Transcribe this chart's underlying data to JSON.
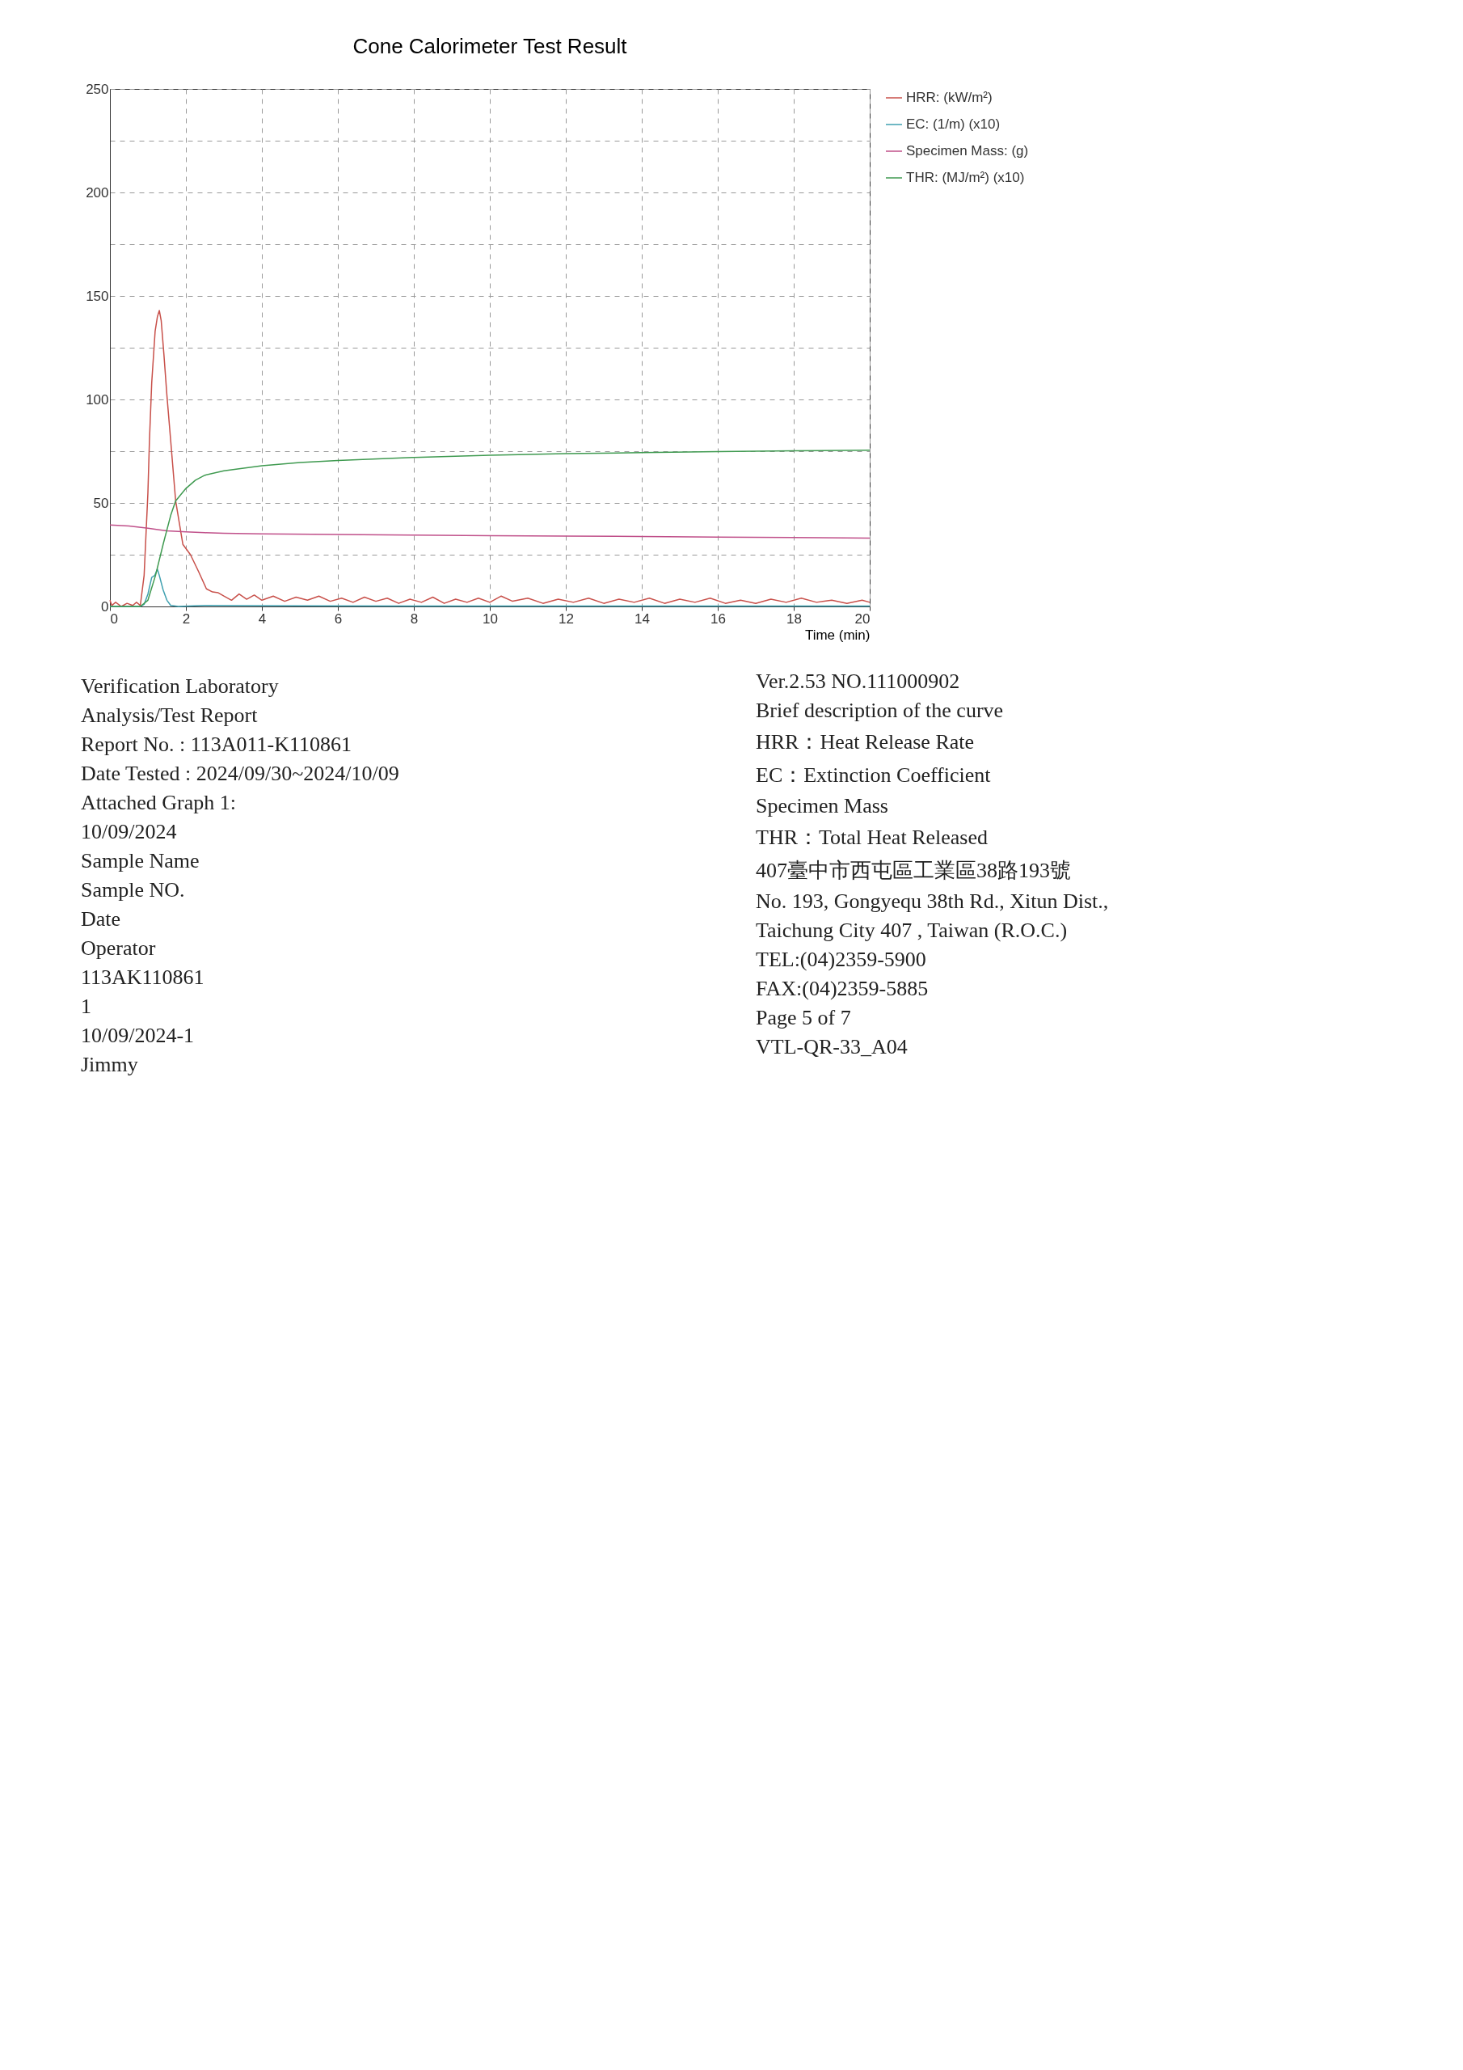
{
  "chart_data": {
    "type": "line",
    "title": "Cone Calorimeter Test Result",
    "xlabel": "Time (min)",
    "xlim": [
      0,
      20
    ],
    "xticks": [
      0,
      2,
      4,
      6,
      8,
      10,
      12,
      14,
      16,
      18,
      20
    ],
    "ylim": [
      0,
      250
    ],
    "yticks": [
      0,
      {
        "value": 25,
        "label": null
      },
      50,
      {
        "value": 75,
        "label": null
      },
      100,
      {
        "value": 125,
        "label": null
      },
      150,
      {
        "value": 175,
        "label": null
      },
      200,
      {
        "value": 225,
        "label": null
      },
      250
    ],
    "grid": true,
    "legend": "right",
    "marker": "none",
    "line_style": "solid",
    "series": [
      {
        "name": "HRR: (kW/m²)",
        "color": "#c8504a",
        "x": [
          0,
          0.05,
          0.15,
          0.3,
          0.45,
          0.6,
          0.7,
          0.8,
          0.9,
          1.0,
          1.04,
          1.1,
          1.19,
          1.25,
          1.3,
          1.35,
          1.42,
          1.5,
          1.6,
          1.73,
          1.92,
          2.12,
          2.33,
          2.54,
          2.7,
          2.85,
          3.0,
          3.2,
          3.4,
          3.6,
          3.8,
          4.0,
          4.3,
          4.6,
          4.9,
          5.2,
          5.5,
          5.8,
          6.1,
          6.4,
          6.7,
          7.0,
          7.3,
          7.6,
          7.9,
          8.2,
          8.5,
          8.8,
          9.1,
          9.4,
          9.7,
          10.0,
          10.3,
          10.6,
          11.0,
          11.4,
          11.8,
          12.2,
          12.6,
          13.0,
          13.4,
          13.8,
          14.2,
          14.6,
          15.0,
          15.4,
          15.8,
          16.2,
          16.6,
          17.0,
          17.4,
          17.8,
          18.2,
          18.6,
          19.0,
          19.4,
          19.8,
          20.0
        ],
        "values": [
          3,
          0.5,
          2,
          0,
          1.5,
          0.5,
          2,
          0.5,
          15,
          55,
          80,
          108,
          133,
          140,
          143,
          138,
          122,
          102,
          80,
          51,
          30,
          25,
          17,
          8.5,
          7,
          6.6,
          5,
          3,
          6,
          3.5,
          5.5,
          3,
          5,
          2.5,
          4.5,
          3,
          5,
          2.5,
          4,
          2,
          4.5,
          2.5,
          4,
          1.5,
          3.5,
          2,
          4.5,
          1.5,
          3.5,
          2,
          4,
          2,
          5,
          2.5,
          4,
          1.5,
          3.5,
          2,
          4,
          1.5,
          3.5,
          2,
          4,
          1.5,
          3.5,
          2,
          4,
          1.5,
          3,
          1.5,
          3.5,
          2,
          4,
          2,
          3,
          1.5,
          3,
          2
        ]
      },
      {
        "name": "EC: (1/m) (x10)",
        "color": "#3fa0b0",
        "x": [
          0,
          0.8,
          0.9,
          1.0,
          1.1,
          1.18,
          1.25,
          1.3,
          1.4,
          1.5,
          1.6,
          1.8,
          2.5,
          5,
          10,
          15,
          20
        ],
        "values": [
          0,
          0,
          1,
          6,
          14,
          15,
          18,
          15,
          8,
          3,
          0.5,
          0,
          0.5,
          0.3,
          0.2,
          0.2,
          0.2
        ]
      },
      {
        "name": "Specimen Mass: (g)",
        "color": "#c0508a",
        "x": [
          0,
          0.5,
          1.0,
          1.3,
          1.5,
          2.0,
          2.5,
          3,
          4,
          6,
          8,
          10,
          12,
          14,
          16,
          18,
          20
        ],
        "values": [
          39.4,
          38.9,
          37.8,
          37,
          36.5,
          36,
          35.6,
          35.4,
          35.1,
          34.8,
          34.5,
          34.2,
          34,
          33.8,
          33.5,
          33.3,
          33
        ]
      },
      {
        "name": "THR: (MJ/m²) (x10)",
        "color": "#3f9a50",
        "x": [
          0,
          0.8,
          1.0,
          1.2,
          1.4,
          1.6,
          1.73,
          2.0,
          2.25,
          2.5,
          3,
          4,
          5,
          6,
          8,
          10,
          12,
          14,
          16,
          18,
          20
        ],
        "values": [
          0,
          0,
          3,
          15,
          30,
          44,
          51,
          57,
          61,
          63.4,
          65.5,
          68,
          69.5,
          70.5,
          72,
          73,
          73.8,
          74.3,
          74.8,
          75.2,
          75.5
        ]
      }
    ],
    "annotations": [
      "Verification Laboratory",
      "Analysis/Test Report",
      "Report No. : 113A011-K110861",
      "Date Tested : 2024/09/30~2024/10/09",
      "Attached Graph 1:",
      "10/09/2024",
      "Sample Name",
      "Sample NO.",
      "Date",
      "Operator",
      "113AK110861",
      "1",
      "10/09/2024-1",
      "Jimmy",
      "Ver.2.53 NO.111000902",
      "Brief description of the curve",
      "HRR：Heat Release Rate",
      "EC：Extinction Coefficient",
      "Specimen Mass",
      "THR：Total Heat Released",
      "407臺中市西屯區工業區38路193號",
      "No. 193, Gongyequ 38th Rd., Xitun Dist.,",
      "Taichung City 407 , Taiwan (R.O.C.)",
      "TEL:(04)2359-5900",
      "FAX:(04)2359-5885",
      "Page 5 of 7",
      "VTL-QR-33_A04"
    ]
  }
}
